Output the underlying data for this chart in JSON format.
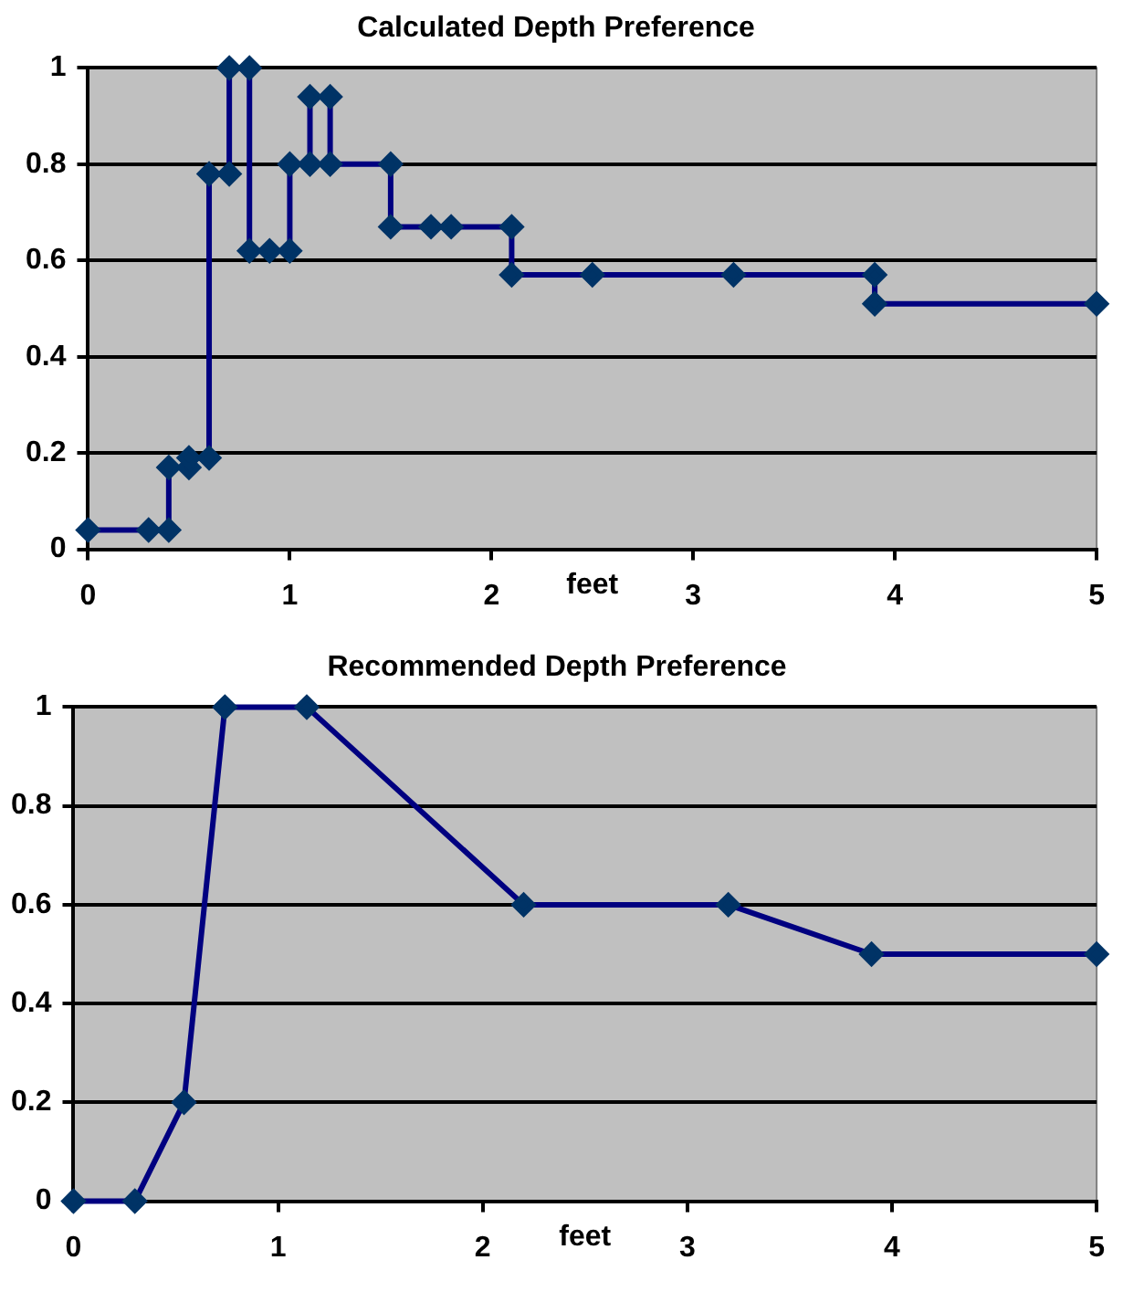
{
  "chart_data": [
    {
      "type": "line",
      "title": "Calculated Depth Preference",
      "xlabel": "feet",
      "x": [
        0,
        0.3,
        0.4,
        0.4,
        0.5,
        0.5,
        0.6,
        0.6,
        0.7,
        0.7,
        0.8,
        0.8,
        0.9,
        1.0,
        1.0,
        1.1,
        1.1,
        1.2,
        1.2,
        1.5,
        1.5,
        1.7,
        1.8,
        2.1,
        2.1,
        2.5,
        3.2,
        3.9,
        3.9,
        5
      ],
      "values": [
        0.04,
        0.04,
        0.04,
        0.17,
        0.17,
        0.19,
        0.19,
        0.78,
        0.78,
        1,
        1,
        0.62,
        0.62,
        0.62,
        0.8,
        0.8,
        0.94,
        0.94,
        0.8,
        0.8,
        0.67,
        0.67,
        0.67,
        0.67,
        0.57,
        0.57,
        0.57,
        0.57,
        0.51,
        0.51
      ],
      "color": "#000080",
      "marker": "diamond",
      "line_style": "solid",
      "xlim": [
        0,
        5
      ],
      "xticks": [
        0,
        1,
        2,
        3,
        4,
        5
      ],
      "ylim": [
        0,
        1
      ],
      "yticks": [
        0,
        0.2,
        0.4,
        0.6,
        0.8,
        1
      ],
      "grid": "y",
      "legend": false
    },
    {
      "type": "line",
      "title": "Recommended Depth Preference",
      "xlabel": "feet",
      "x": [
        0,
        0.3,
        0.54,
        0.74,
        1.14,
        2.2,
        3.2,
        3.9,
        5
      ],
      "values": [
        0,
        0,
        0.2,
        1,
        1,
        0.6,
        0.6,
        0.5,
        0.5
      ],
      "color": "#000080",
      "marker": "diamond",
      "line_style": "solid",
      "xlim": [
        0,
        5
      ],
      "xticks": [
        0,
        1,
        2,
        3,
        4,
        5
      ],
      "ylim": [
        0,
        1
      ],
      "yticks": [
        0,
        0.2,
        0.4,
        0.6,
        0.8,
        1
      ],
      "grid": "y",
      "legend": false
    }
  ]
}
